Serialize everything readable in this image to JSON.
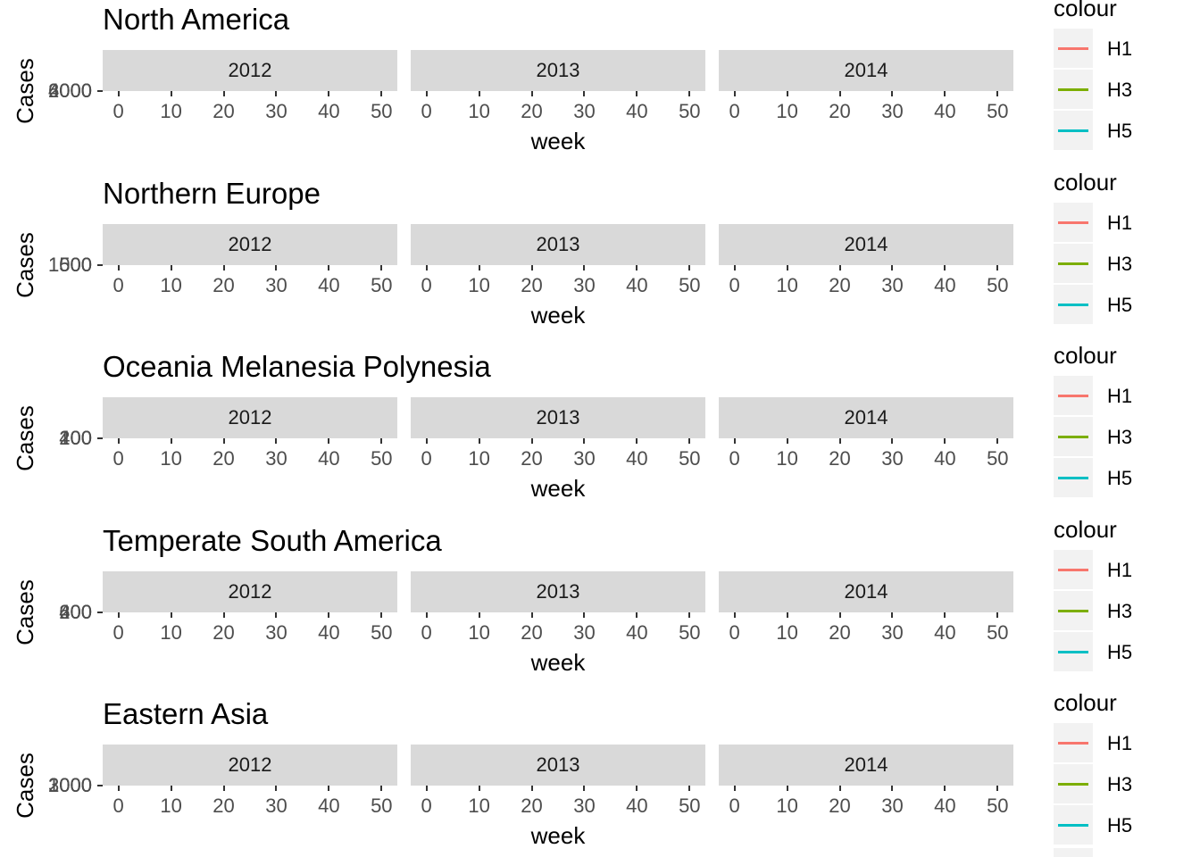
{
  "chart_data": [
    {
      "type": "line",
      "title": "North America",
      "xlabel": "week",
      "ylabel": "Cases",
      "yticks": [
        "2000",
        "4000",
        "6000"
      ],
      "facets": [
        "2012",
        "2013",
        "2014"
      ],
      "xticks": [
        "0",
        "10",
        "20",
        "30",
        "40",
        "50"
      ],
      "legend": {
        "title": "colour",
        "items": [
          "H1",
          "H3",
          "H5"
        ]
      },
      "series": [
        {
          "name": "H1",
          "values": []
        },
        {
          "name": "H3",
          "values": []
        },
        {
          "name": "H5",
          "values": []
        }
      ]
    },
    {
      "type": "line",
      "title": "Northern Europe",
      "xlabel": "week",
      "ylabel": "Cases",
      "yticks": [
        "500",
        "1000",
        "1500"
      ],
      "facets": [
        "2012",
        "2013",
        "2014"
      ],
      "xticks": [
        "0",
        "10",
        "20",
        "30",
        "40",
        "50"
      ],
      "legend": {
        "title": "colour",
        "items": [
          "H1",
          "H3",
          "H5"
        ]
      },
      "series": [
        {
          "name": "H1",
          "values": []
        },
        {
          "name": "H3",
          "values": []
        },
        {
          "name": "H5",
          "values": []
        }
      ]
    },
    {
      "type": "line",
      "title": "Oceania Melanesia Polynesia",
      "xlabel": "week",
      "ylabel": "Cases",
      "yticks": [
        "100",
        "200",
        "400"
      ],
      "facets": [
        "2012",
        "2013",
        "2014"
      ],
      "xticks": [
        "0",
        "10",
        "20",
        "30",
        "40",
        "50"
      ],
      "legend": {
        "title": "colour",
        "items": [
          "H1",
          "H3",
          "H5"
        ]
      },
      "series": [
        {
          "name": "H1",
          "values": []
        },
        {
          "name": "H3",
          "values": []
        },
        {
          "name": "H5",
          "values": []
        }
      ]
    },
    {
      "type": "line",
      "title": "Temperate South America",
      "xlabel": "week",
      "ylabel": "Cases",
      "yticks": [
        "200",
        "400",
        "600"
      ],
      "facets": [
        "2012",
        "2013",
        "2014"
      ],
      "xticks": [
        "0",
        "10",
        "20",
        "30",
        "40",
        "50"
      ],
      "legend": {
        "title": "colour",
        "items": [
          "H1",
          "H3",
          "H5"
        ]
      },
      "series": [
        {
          "name": "H1",
          "values": []
        },
        {
          "name": "H3",
          "values": []
        },
        {
          "name": "H5",
          "values": []
        }
      ]
    },
    {
      "type": "line",
      "title": "Eastern Asia",
      "xlabel": "week",
      "ylabel": "Cases",
      "yticks": [
        "1000",
        "2000",
        "3000"
      ],
      "facets": [
        "2012",
        "2013",
        "2014"
      ],
      "xticks": [
        "0",
        "10",
        "20",
        "30",
        "40",
        "50"
      ],
      "legend": {
        "title": "colour",
        "items": [
          "H1",
          "H3",
          "H5"
        ]
      },
      "series": [
        {
          "name": "H1",
          "values": []
        },
        {
          "name": "H3",
          "values": []
        },
        {
          "name": "H5",
          "values": []
        }
      ]
    }
  ],
  "colors": {
    "H1": "#F8766D",
    "H3": "#7CAE00",
    "H5": "#00BFC4"
  }
}
